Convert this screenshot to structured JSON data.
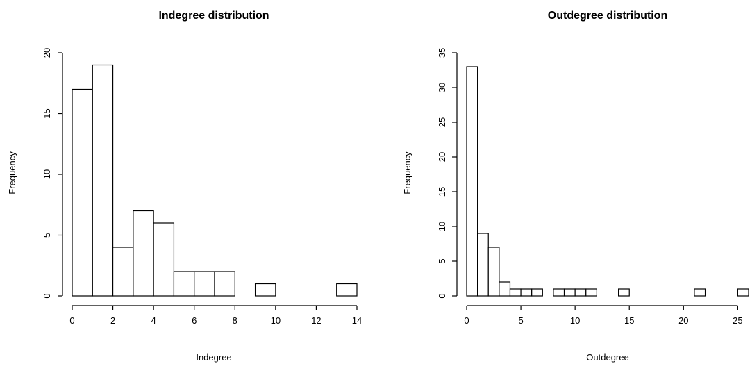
{
  "chart_data": [
    {
      "type": "bar",
      "title": "Indegree distribution",
      "xlabel": "Indegree",
      "ylabel": "Frequency",
      "bin_width": 1,
      "bins": [
        {
          "start": 0,
          "end": 1,
          "count": 17
        },
        {
          "start": 1,
          "end": 2,
          "count": 19
        },
        {
          "start": 2,
          "end": 3,
          "count": 4
        },
        {
          "start": 3,
          "end": 4,
          "count": 7
        },
        {
          "start": 4,
          "end": 5,
          "count": 6
        },
        {
          "start": 5,
          "end": 6,
          "count": 2
        },
        {
          "start": 6,
          "end": 7,
          "count": 2
        },
        {
          "start": 7,
          "end": 8,
          "count": 2
        },
        {
          "start": 8,
          "end": 9,
          "count": 0
        },
        {
          "start": 9,
          "end": 10,
          "count": 1
        },
        {
          "start": 10,
          "end": 11,
          "count": 0
        },
        {
          "start": 11,
          "end": 12,
          "count": 0
        },
        {
          "start": 12,
          "end": 13,
          "count": 0
        },
        {
          "start": 13,
          "end": 14,
          "count": 1
        }
      ],
      "xlim": [
        0,
        14
      ],
      "ylim": [
        0,
        20
      ],
      "x_ticks": [
        0,
        2,
        4,
        6,
        8,
        10,
        12,
        14
      ],
      "y_ticks": [
        0,
        5,
        10,
        15,
        20
      ],
      "grid": false
    },
    {
      "type": "bar",
      "title": "Outdegree distribution",
      "xlabel": "Outdegree",
      "ylabel": "Frequency",
      "bin_width": 1,
      "bins": [
        {
          "start": 0,
          "end": 1,
          "count": 33
        },
        {
          "start": 1,
          "end": 2,
          "count": 9
        },
        {
          "start": 2,
          "end": 3,
          "count": 7
        },
        {
          "start": 3,
          "end": 4,
          "count": 2
        },
        {
          "start": 4,
          "end": 5,
          "count": 1
        },
        {
          "start": 5,
          "end": 6,
          "count": 1
        },
        {
          "start": 6,
          "end": 7,
          "count": 1
        },
        {
          "start": 7,
          "end": 8,
          "count": 0
        },
        {
          "start": 8,
          "end": 9,
          "count": 1
        },
        {
          "start": 9,
          "end": 10,
          "count": 1
        },
        {
          "start": 10,
          "end": 11,
          "count": 1
        },
        {
          "start": 11,
          "end": 12,
          "count": 1
        },
        {
          "start": 12,
          "end": 13,
          "count": 0
        },
        {
          "start": 13,
          "end": 14,
          "count": 0
        },
        {
          "start": 14,
          "end": 15,
          "count": 1
        },
        {
          "start": 15,
          "end": 16,
          "count": 0
        },
        {
          "start": 16,
          "end": 17,
          "count": 0
        },
        {
          "start": 17,
          "end": 18,
          "count": 0
        },
        {
          "start": 18,
          "end": 19,
          "count": 0
        },
        {
          "start": 19,
          "end": 20,
          "count": 0
        },
        {
          "start": 20,
          "end": 21,
          "count": 0
        },
        {
          "start": 21,
          "end": 22,
          "count": 1
        },
        {
          "start": 22,
          "end": 23,
          "count": 0
        },
        {
          "start": 23,
          "end": 24,
          "count": 0
        },
        {
          "start": 24,
          "end": 25,
          "count": 0
        },
        {
          "start": 25,
          "end": 26,
          "count": 1
        }
      ],
      "xlim": [
        0,
        26
      ],
      "ylim": [
        0,
        35
      ],
      "x_ticks": [
        0,
        5,
        10,
        15,
        20,
        25
      ],
      "y_ticks": [
        0,
        5,
        10,
        15,
        20,
        25,
        30,
        35
      ],
      "grid": false
    }
  ]
}
